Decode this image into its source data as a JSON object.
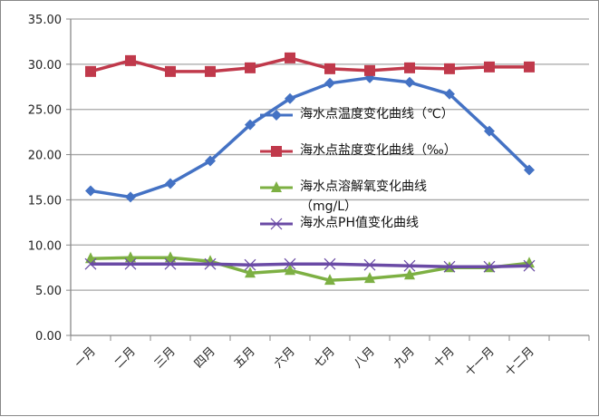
{
  "chart_data": {
    "type": "line",
    "categories": [
      "一月",
      "二月",
      "三月",
      "四月",
      "五月",
      "六月",
      "七月",
      "八月",
      "九月",
      "十月",
      "十一月",
      "十二月"
    ],
    "ylim": [
      0,
      35
    ],
    "yticks": [
      "0.00",
      "5.00",
      "10.00",
      "15.00",
      "20.00",
      "25.00",
      "30.00",
      "35.00"
    ],
    "grid": true,
    "legend_position": "center-right",
    "series": [
      {
        "name": "海水点温度变化曲线（℃）",
        "color": "#4472C4",
        "marker": "diamond",
        "values": [
          16.0,
          15.3,
          16.8,
          19.3,
          23.3,
          26.2,
          27.9,
          28.5,
          28.0,
          26.7,
          22.6,
          18.3
        ]
      },
      {
        "name": "海水点盐度变化曲线（‰）",
        "color": "#C0394B",
        "marker": "square",
        "values": [
          29.2,
          30.4,
          29.2,
          29.2,
          29.6,
          30.7,
          29.5,
          29.3,
          29.6,
          29.5,
          29.7,
          29.7
        ]
      },
      {
        "name": "海水点溶解氧变化曲线（mg/L）",
        "color": "#7DB043",
        "marker": "triangle",
        "values": [
          8.5,
          8.6,
          8.6,
          8.2,
          6.9,
          7.2,
          6.1,
          6.3,
          6.7,
          7.5,
          7.5,
          8.0
        ]
      },
      {
        "name": "海水点PH值变化曲线",
        "color": "#6A4AA5",
        "marker": "x",
        "values": [
          7.9,
          7.9,
          7.9,
          7.9,
          7.8,
          7.9,
          7.9,
          7.8,
          7.7,
          7.6,
          7.6,
          7.7
        ]
      }
    ]
  }
}
